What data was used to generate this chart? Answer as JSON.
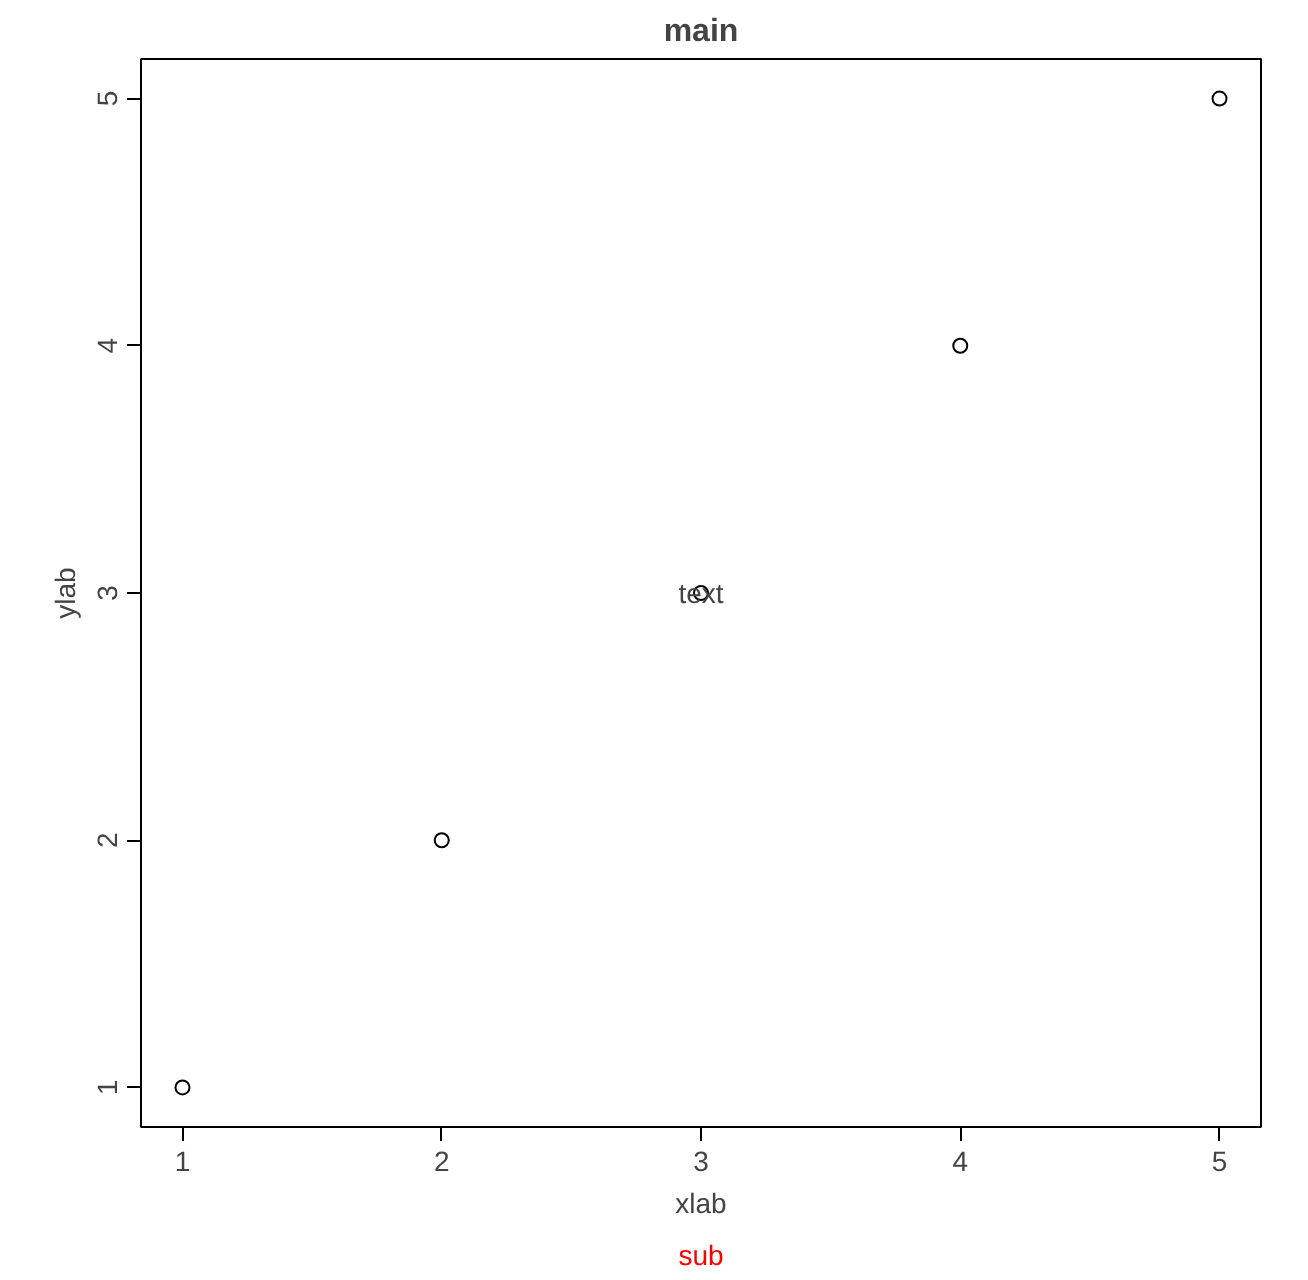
{
  "chart_data": {
    "type": "scatter",
    "title": "main",
    "subtitle": "sub",
    "xlabel": "xlab",
    "ylabel": "ylab",
    "x": [
      1,
      2,
      3,
      4,
      5
    ],
    "series": [
      {
        "color": "#000000",
        "values": [
          1,
          2,
          3,
          4,
          5
        ]
      }
    ],
    "marker": "circle",
    "grid": false,
    "xlim": [
      0.84,
      5.16
    ],
    "ylim": [
      0.84,
      5.16
    ],
    "xticks": [
      1,
      2,
      3,
      4,
      5
    ],
    "yticks": [
      1,
      2,
      3,
      4,
      5
    ],
    "annotations": [
      {
        "text": "text",
        "x": 3,
        "y": 3
      }
    ]
  }
}
